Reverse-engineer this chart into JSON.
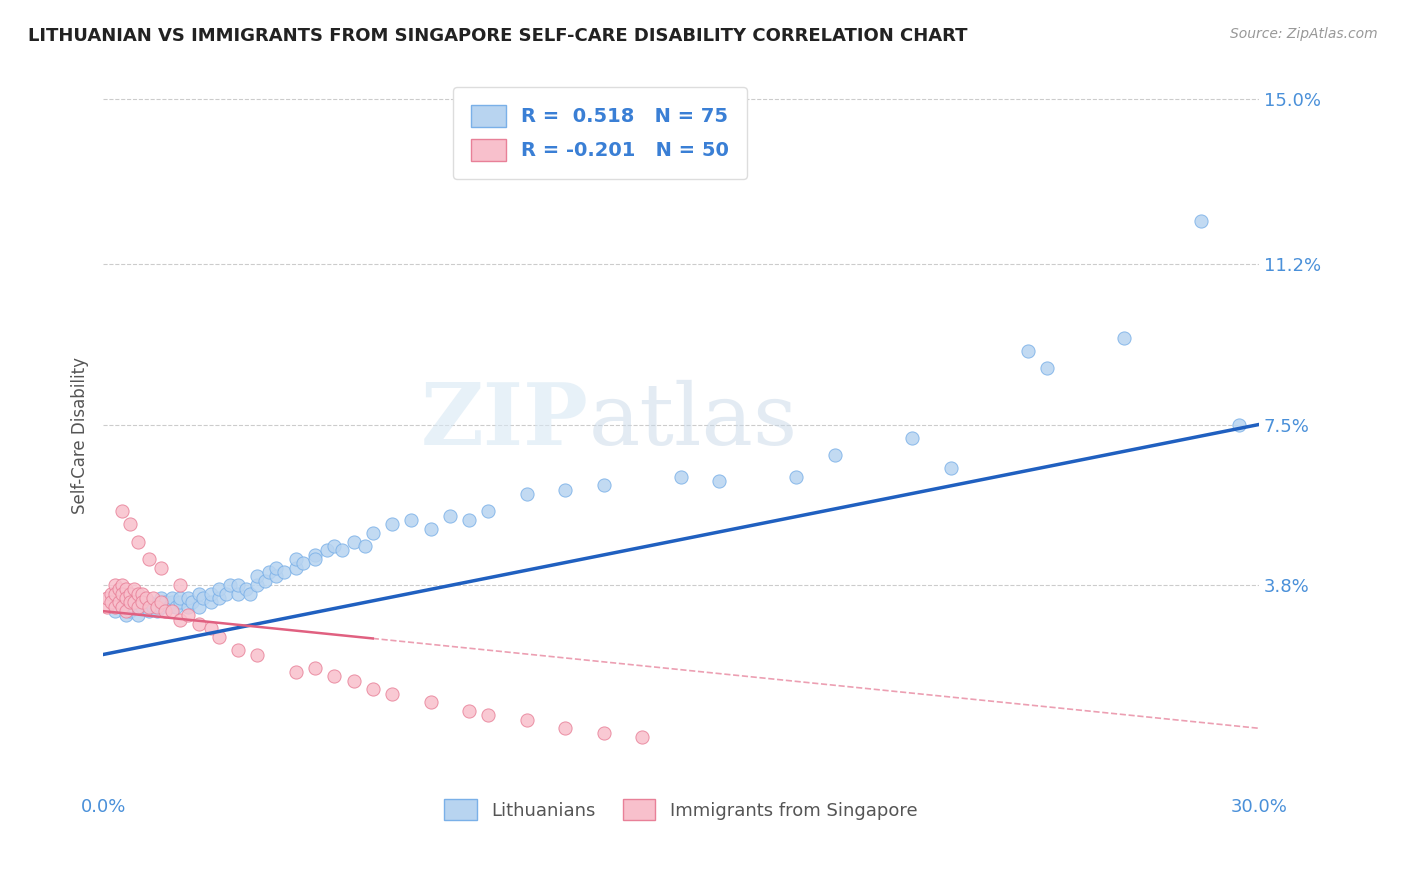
{
  "title": "LITHUANIAN VS IMMIGRANTS FROM SINGAPORE SELF-CARE DISABILITY CORRELATION CHART",
  "source": "Source: ZipAtlas.com",
  "ylabel": "Self-Care Disability",
  "xlim": [
    0.0,
    0.3
  ],
  "ylim": [
    -0.01,
    0.155
  ],
  "ytick_values": [
    0.038,
    0.075,
    0.112,
    0.15
  ],
  "ytick_labels": [
    "3.8%",
    "7.5%",
    "11.2%",
    "15.0%"
  ],
  "grid_color": "#cccccc",
  "background_color": "#ffffff",
  "series1_name": "Lithuanians",
  "series1_color": "#b8d4f0",
  "series1_edge_color": "#7ab0e8",
  "series1_R": 0.518,
  "series1_N": 75,
  "series1_line_color": "#2060c0",
  "series2_name": "Immigrants from Singapore",
  "series2_color": "#f8c0cc",
  "series2_edge_color": "#e88098",
  "series2_R": -0.201,
  "series2_N": 50,
  "series2_line_color": "#e06080",
  "watermark_zip": "ZIP",
  "watermark_atlas": "atlas",
  "title_color": "#222222",
  "axis_label_color": "#555555",
  "tick_label_color": "#4a90d9",
  "legend_R_color": "#3a7fd5",
  "series1_line_y0": 0.022,
  "series1_line_y1": 0.075,
  "series2_line_y0": 0.032,
  "series2_line_y1": 0.005,
  "series1_x": [
    0.003,
    0.005,
    0.006,
    0.007,
    0.008,
    0.009,
    0.01,
    0.01,
    0.012,
    0.012,
    0.013,
    0.014,
    0.015,
    0.015,
    0.016,
    0.017,
    0.018,
    0.018,
    0.019,
    0.02,
    0.02,
    0.022,
    0.022,
    0.023,
    0.025,
    0.025,
    0.026,
    0.028,
    0.028,
    0.03,
    0.03,
    0.032,
    0.033,
    0.035,
    0.035,
    0.037,
    0.038,
    0.04,
    0.04,
    0.042,
    0.043,
    0.045,
    0.045,
    0.047,
    0.05,
    0.05,
    0.052,
    0.055,
    0.055,
    0.058,
    0.06,
    0.062,
    0.065,
    0.068,
    0.07,
    0.075,
    0.08,
    0.085,
    0.09,
    0.095,
    0.1,
    0.11,
    0.12,
    0.13,
    0.15,
    0.16,
    0.18,
    0.19,
    0.21,
    0.22,
    0.24,
    0.245,
    0.265,
    0.285,
    0.295
  ],
  "series1_y": [
    0.032,
    0.033,
    0.031,
    0.032,
    0.033,
    0.031,
    0.033,
    0.035,
    0.032,
    0.034,
    0.033,
    0.032,
    0.033,
    0.035,
    0.034,
    0.033,
    0.034,
    0.035,
    0.033,
    0.034,
    0.035,
    0.033,
    0.035,
    0.034,
    0.033,
    0.036,
    0.035,
    0.034,
    0.036,
    0.035,
    0.037,
    0.036,
    0.038,
    0.036,
    0.038,
    0.037,
    0.036,
    0.038,
    0.04,
    0.039,
    0.041,
    0.04,
    0.042,
    0.041,
    0.042,
    0.044,
    0.043,
    0.045,
    0.044,
    0.046,
    0.047,
    0.046,
    0.048,
    0.047,
    0.05,
    0.052,
    0.053,
    0.051,
    0.054,
    0.053,
    0.055,
    0.059,
    0.06,
    0.061,
    0.063,
    0.062,
    0.063,
    0.068,
    0.072,
    0.065,
    0.092,
    0.088,
    0.095,
    0.122,
    0.075
  ],
  "series2_x": [
    0.001,
    0.001,
    0.002,
    0.002,
    0.003,
    0.003,
    0.003,
    0.004,
    0.004,
    0.005,
    0.005,
    0.005,
    0.006,
    0.006,
    0.006,
    0.007,
    0.007,
    0.008,
    0.008,
    0.009,
    0.009,
    0.01,
    0.01,
    0.011,
    0.012,
    0.013,
    0.014,
    0.015,
    0.016,
    0.018,
    0.02,
    0.022,
    0.025,
    0.028,
    0.03,
    0.035,
    0.04,
    0.05,
    0.055,
    0.06,
    0.065,
    0.07,
    0.075,
    0.085,
    0.095,
    0.1,
    0.11,
    0.12,
    0.13,
    0.14
  ],
  "series2_y": [
    0.033,
    0.035,
    0.036,
    0.034,
    0.038,
    0.036,
    0.033,
    0.037,
    0.034,
    0.038,
    0.036,
    0.033,
    0.037,
    0.035,
    0.032,
    0.036,
    0.034,
    0.037,
    0.034,
    0.036,
    0.033,
    0.036,
    0.034,
    0.035,
    0.033,
    0.035,
    0.033,
    0.034,
    0.032,
    0.032,
    0.03,
    0.031,
    0.029,
    0.028,
    0.026,
    0.023,
    0.022,
    0.018,
    0.019,
    0.017,
    0.016,
    0.014,
    0.013,
    0.011,
    0.009,
    0.008,
    0.007,
    0.005,
    0.004,
    0.003
  ],
  "series2_high_y_x": [
    0.005,
    0.007,
    0.009,
    0.012,
    0.015,
    0.02
  ],
  "series2_high_y_y": [
    0.055,
    0.052,
    0.048,
    0.044,
    0.042,
    0.038
  ]
}
